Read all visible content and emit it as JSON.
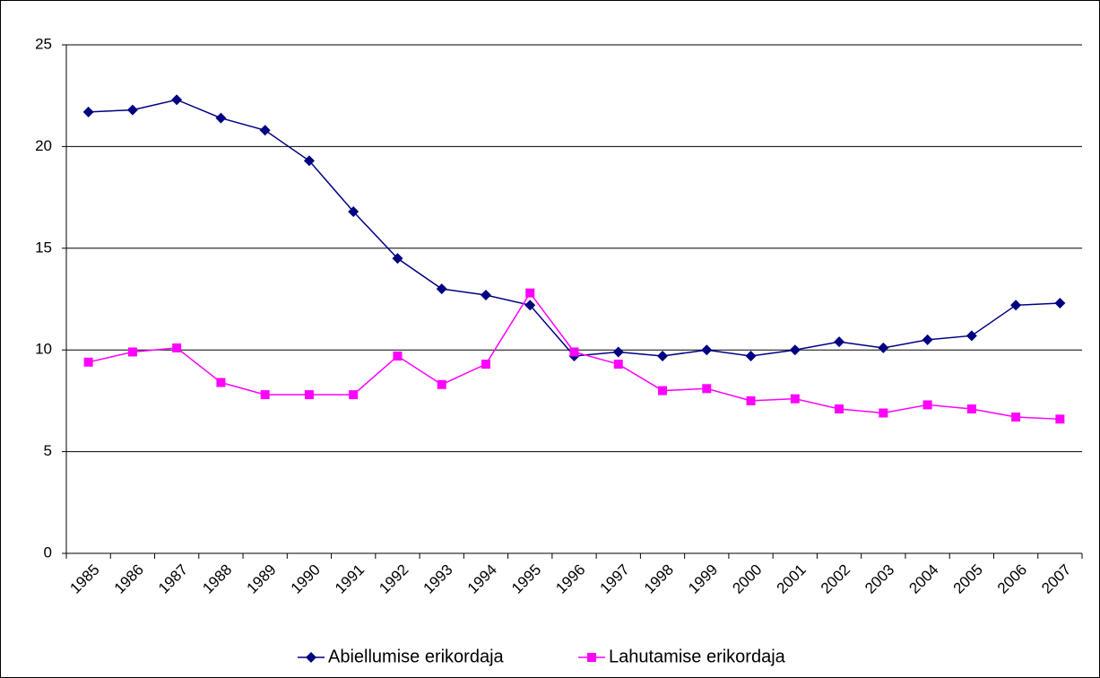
{
  "chart_data": {
    "type": "line",
    "categories": [
      "1985",
      "1986",
      "1987",
      "1988",
      "1989",
      "1990",
      "1991",
      "1992",
      "1993",
      "1994",
      "1995",
      "1996",
      "1997",
      "1998",
      "1999",
      "2000",
      "2001",
      "2002",
      "2003",
      "2004",
      "2005",
      "2006",
      "2007"
    ],
    "series": [
      {
        "name": "Abiellumise erikordaja",
        "color": "#000080",
        "marker": "diamond",
        "values": [
          21.7,
          21.8,
          22.3,
          21.4,
          20.8,
          19.3,
          16.8,
          14.5,
          13.0,
          12.7,
          12.2,
          9.7,
          9.9,
          9.7,
          10.0,
          9.7,
          10.0,
          10.4,
          10.1,
          10.5,
          10.7,
          12.2,
          12.3
        ]
      },
      {
        "name": "Lahutamise erikordaja",
        "color": "#FF00FF",
        "marker": "square",
        "values": [
          9.4,
          9.9,
          10.1,
          8.4,
          7.8,
          7.8,
          7.8,
          9.7,
          8.3,
          9.3,
          12.8,
          9.9,
          9.3,
          8.0,
          8.1,
          7.5,
          7.6,
          7.1,
          6.9,
          7.3,
          7.1,
          6.7,
          6.6
        ]
      }
    ],
    "ylim": [
      0,
      25
    ],
    "yticks": [
      0,
      5,
      10,
      15,
      20,
      25
    ],
    "grid": true,
    "legend": "bottom"
  }
}
